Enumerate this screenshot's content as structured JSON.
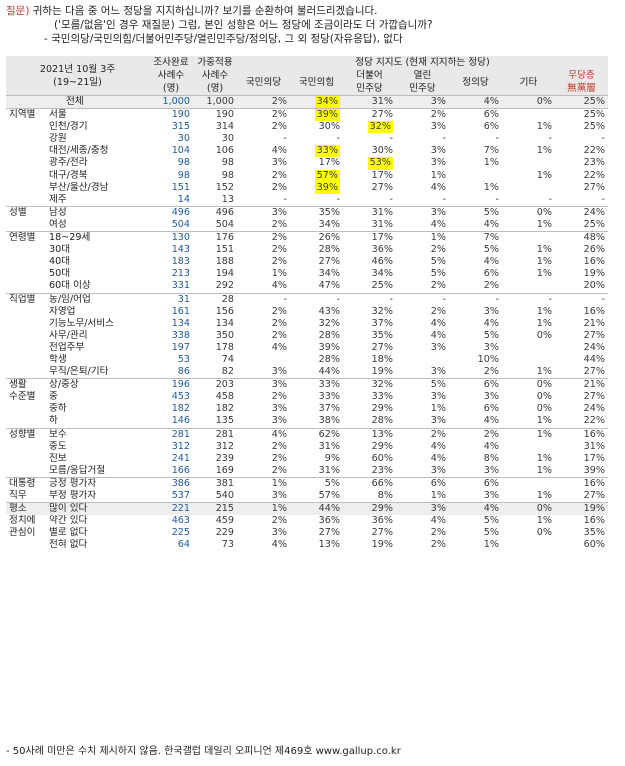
{
  "question": {
    "label": "질문)",
    "line1": "귀하는 다음 중 어느 정당을 지지하십니까? 보기를 순환하여 불러드리겠습니다.",
    "line2": "('모름/없음'인 경우 재질문) 그럼, 본인 성향은 어느 정당에 조금이라도 더 가깝습니까?",
    "line3": "- 국민의당/국민의힘/더불어민주당/열린민주당/정의당, 그 외 정당(자유응답), 없다"
  },
  "header": {
    "period": "2021년 10월 3주",
    "dates": "(19~21일)",
    "col_done_top": "조사완료",
    "col_done_mid": "사례수",
    "col_done_bot": "(명)",
    "col_weight_top": "가중적용",
    "col_weight_mid": "사례수",
    "col_weight_bot": "(명)",
    "support_group": "정당 지지도 (현재 지지하는 정당)",
    "parties": [
      "국민의당",
      "국민의힘",
      "더불어\n민주당",
      "열린\n민주당",
      "정의당",
      "기타"
    ],
    "party1": "국민의당",
    "party2": "국민의힘",
    "party3a": "더불어",
    "party3b": "민주당",
    "party4a": "열린",
    "party4b": "민주당",
    "party5": "정의당",
    "party6": "기타",
    "noparty_a": "무당층",
    "noparty_b": "無黨層"
  },
  "rows": [
    {
      "g": "",
      "s": "전체",
      "n1": "1,000",
      "n2": "1,000",
      "v": [
        "2%",
        "34%",
        "31%",
        "3%",
        "4%",
        "0%",
        "25%"
      ],
      "hl": [
        1
      ],
      "sep": true,
      "total": true
    },
    {
      "g": "지역별",
      "s": "서울",
      "n1": "190",
      "n2": "190",
      "v": [
        "2%",
        "39%",
        "27%",
        "2%",
        "6%",
        "",
        "25%"
      ],
      "hl": [
        1
      ],
      "sep": true
    },
    {
      "g": "",
      "s": "인천/경기",
      "n1": "315",
      "n2": "314",
      "v": [
        "2%",
        "30%",
        "32%",
        "3%",
        "6%",
        "1%",
        "25%"
      ],
      "hl": [
        2
      ]
    },
    {
      "g": "",
      "s": "강원",
      "n1": "30",
      "n2": "30",
      "v": [
        "-",
        "-",
        "-",
        "-",
        "-",
        "-",
        "-"
      ],
      "hl": []
    },
    {
      "g": "",
      "s": "대전/세종/충청",
      "n1": "104",
      "n2": "106",
      "v": [
        "4%",
        "33%",
        "30%",
        "3%",
        "7%",
        "1%",
        "22%"
      ],
      "hl": [
        1
      ]
    },
    {
      "g": "",
      "s": "광주/전라",
      "n1": "98",
      "n2": "98",
      "v": [
        "3%",
        "17%",
        "53%",
        "3%",
        "1%",
        "",
        "23%"
      ],
      "hl": [
        2
      ]
    },
    {
      "g": "",
      "s": "대구/경북",
      "n1": "98",
      "n2": "98",
      "v": [
        "2%",
        "57%",
        "17%",
        "1%",
        "",
        "1%",
        "22%"
      ],
      "hl": [
        1
      ]
    },
    {
      "g": "",
      "s": "부산/울산/경남",
      "n1": "151",
      "n2": "152",
      "v": [
        "2%",
        "39%",
        "27%",
        "4%",
        "1%",
        "",
        "27%"
      ],
      "hl": [
        1
      ]
    },
    {
      "g": "",
      "s": "제주",
      "n1": "14",
      "n2": "13",
      "v": [
        "-",
        "-",
        "-",
        "-",
        "-",
        "-",
        "-"
      ],
      "hl": []
    },
    {
      "g": "성별",
      "s": "남성",
      "n1": "496",
      "n2": "496",
      "v": [
        "3%",
        "35%",
        "31%",
        "3%",
        "5%",
        "0%",
        "24%"
      ],
      "hl": [],
      "sep": true
    },
    {
      "g": "",
      "s": "여성",
      "n1": "504",
      "n2": "504",
      "v": [
        "2%",
        "34%",
        "31%",
        "4%",
        "4%",
        "1%",
        "25%"
      ],
      "hl": []
    },
    {
      "g": "연령별",
      "s": "18~29세",
      "n1": "130",
      "n2": "176",
      "v": [
        "2%",
        "26%",
        "17%",
        "1%",
        "7%",
        "",
        "48%"
      ],
      "hl": [],
      "sep": true
    },
    {
      "g": "",
      "s": "30대",
      "n1": "143",
      "n2": "151",
      "v": [
        "2%",
        "28%",
        "36%",
        "2%",
        "5%",
        "1%",
        "26%"
      ],
      "hl": []
    },
    {
      "g": "",
      "s": "40대",
      "n1": "183",
      "n2": "188",
      "v": [
        "2%",
        "27%",
        "46%",
        "5%",
        "4%",
        "1%",
        "16%"
      ],
      "hl": []
    },
    {
      "g": "",
      "s": "50대",
      "n1": "213",
      "n2": "194",
      "v": [
        "1%",
        "34%",
        "34%",
        "5%",
        "6%",
        "1%",
        "19%"
      ],
      "hl": []
    },
    {
      "g": "",
      "s": "60대 이상",
      "n1": "331",
      "n2": "292",
      "v": [
        "4%",
        "47%",
        "25%",
        "2%",
        "2%",
        "",
        "20%"
      ],
      "hl": []
    },
    {
      "g": "직업별",
      "s": "농/임/어업",
      "n1": "31",
      "n2": "28",
      "v": [
        "-",
        "-",
        "-",
        "-",
        "-",
        "-",
        "-"
      ],
      "hl": [],
      "sep": true
    },
    {
      "g": "",
      "s": "자영업",
      "n1": "161",
      "n2": "156",
      "v": [
        "2%",
        "43%",
        "32%",
        "2%",
        "3%",
        "1%",
        "16%"
      ],
      "hl": []
    },
    {
      "g": "",
      "s": "기능노무/서비스",
      "n1": "134",
      "n2": "134",
      "v": [
        "2%",
        "32%",
        "37%",
        "4%",
        "4%",
        "1%",
        "21%"
      ],
      "hl": []
    },
    {
      "g": "",
      "s": "사무/관리",
      "n1": "338",
      "n2": "350",
      "v": [
        "2%",
        "28%",
        "35%",
        "4%",
        "5%",
        "0%",
        "27%"
      ],
      "hl": []
    },
    {
      "g": "",
      "s": "전업주부",
      "n1": "197",
      "n2": "178",
      "v": [
        "4%",
        "39%",
        "27%",
        "3%",
        "3%",
        "",
        "24%"
      ],
      "hl": []
    },
    {
      "g": "",
      "s": "학생",
      "n1": "53",
      "n2": "74",
      "v": [
        "",
        "28%",
        "18%",
        "",
        "10%",
        "",
        "44%"
      ],
      "hl": []
    },
    {
      "g": "",
      "s": "무직/은퇴/기타",
      "n1": "86",
      "n2": "82",
      "v": [
        "3%",
        "44%",
        "19%",
        "3%",
        "2%",
        "1%",
        "27%"
      ],
      "hl": []
    },
    {
      "g": "생활",
      "s": "상/중상",
      "n1": "196",
      "n2": "203",
      "v": [
        "3%",
        "33%",
        "32%",
        "5%",
        "6%",
        "0%",
        "21%"
      ],
      "hl": [],
      "sep": true
    },
    {
      "g": "수준별",
      "s": "중",
      "n1": "453",
      "n2": "458",
      "v": [
        "2%",
        "33%",
        "33%",
        "3%",
        "3%",
        "0%",
        "27%"
      ],
      "hl": []
    },
    {
      "g": "",
      "s": "중하",
      "n1": "182",
      "n2": "182",
      "v": [
        "3%",
        "37%",
        "29%",
        "1%",
        "6%",
        "0%",
        "24%"
      ],
      "hl": []
    },
    {
      "g": "",
      "s": "하",
      "n1": "146",
      "n2": "135",
      "v": [
        "3%",
        "38%",
        "28%",
        "3%",
        "4%",
        "1%",
        "22%"
      ],
      "hl": []
    },
    {
      "g": "성향별",
      "s": "보수",
      "n1": "281",
      "n2": "281",
      "v": [
        "4%",
        "62%",
        "13%",
        "2%",
        "2%",
        "1%",
        "16%"
      ],
      "hl": [],
      "sep": true
    },
    {
      "g": "",
      "s": "중도",
      "n1": "312",
      "n2": "312",
      "v": [
        "2%",
        "31%",
        "29%",
        "4%",
        "4%",
        "",
        "31%"
      ],
      "hl": []
    },
    {
      "g": "",
      "s": "진보",
      "n1": "241",
      "n2": "239",
      "v": [
        "2%",
        "9%",
        "60%",
        "4%",
        "8%",
        "1%",
        "17%"
      ],
      "hl": []
    },
    {
      "g": "",
      "s": "모름/응답거절",
      "n1": "166",
      "n2": "169",
      "v": [
        "2%",
        "31%",
        "23%",
        "3%",
        "3%",
        "1%",
        "39%"
      ],
      "hl": []
    },
    {
      "g": "대통령",
      "s": "긍정 평가자",
      "n1": "386",
      "n2": "381",
      "v": [
        "1%",
        "5%",
        "66%",
        "6%",
        "6%",
        "",
        "16%"
      ],
      "hl": [],
      "sep": true
    },
    {
      "g": "직무",
      "s": "부정 평가자",
      "n1": "537",
      "n2": "540",
      "v": [
        "3%",
        "57%",
        "8%",
        "1%",
        "3%",
        "1%",
        "27%"
      ],
      "hl": []
    },
    {
      "g": "평소",
      "s": "많이 있다",
      "n1": "221",
      "n2": "215",
      "v": [
        "1%",
        "44%",
        "29%",
        "3%",
        "4%",
        "0%",
        "19%"
      ],
      "hl": [],
      "sep": true,
      "total": true
    },
    {
      "g": "정치에",
      "s": "약간 있다",
      "n1": "463",
      "n2": "459",
      "v": [
        "2%",
        "36%",
        "36%",
        "4%",
        "5%",
        "1%",
        "16%"
      ],
      "hl": []
    },
    {
      "g": "관심이",
      "s": "별로 없다",
      "n1": "225",
      "n2": "229",
      "v": [
        "3%",
        "27%",
        "27%",
        "2%",
        "5%",
        "0%",
        "35%"
      ],
      "hl": []
    },
    {
      "g": "",
      "s": "전혀 없다",
      "n1": "64",
      "n2": "73",
      "v": [
        "4%",
        "13%",
        "19%",
        "2%",
        "1%",
        "",
        "60%"
      ],
      "hl": []
    }
  ],
  "footer": "- 50사례 미만은 수치 제시하지 않음. 한국갤럽 데일리 오피니언 제469호 www.gallup.co.kr",
  "colors": {
    "highlight": "#ffff00",
    "header_bg": "#e9e9e9",
    "question_label": "#c0392b",
    "sample_count": "#1f5a9e"
  }
}
